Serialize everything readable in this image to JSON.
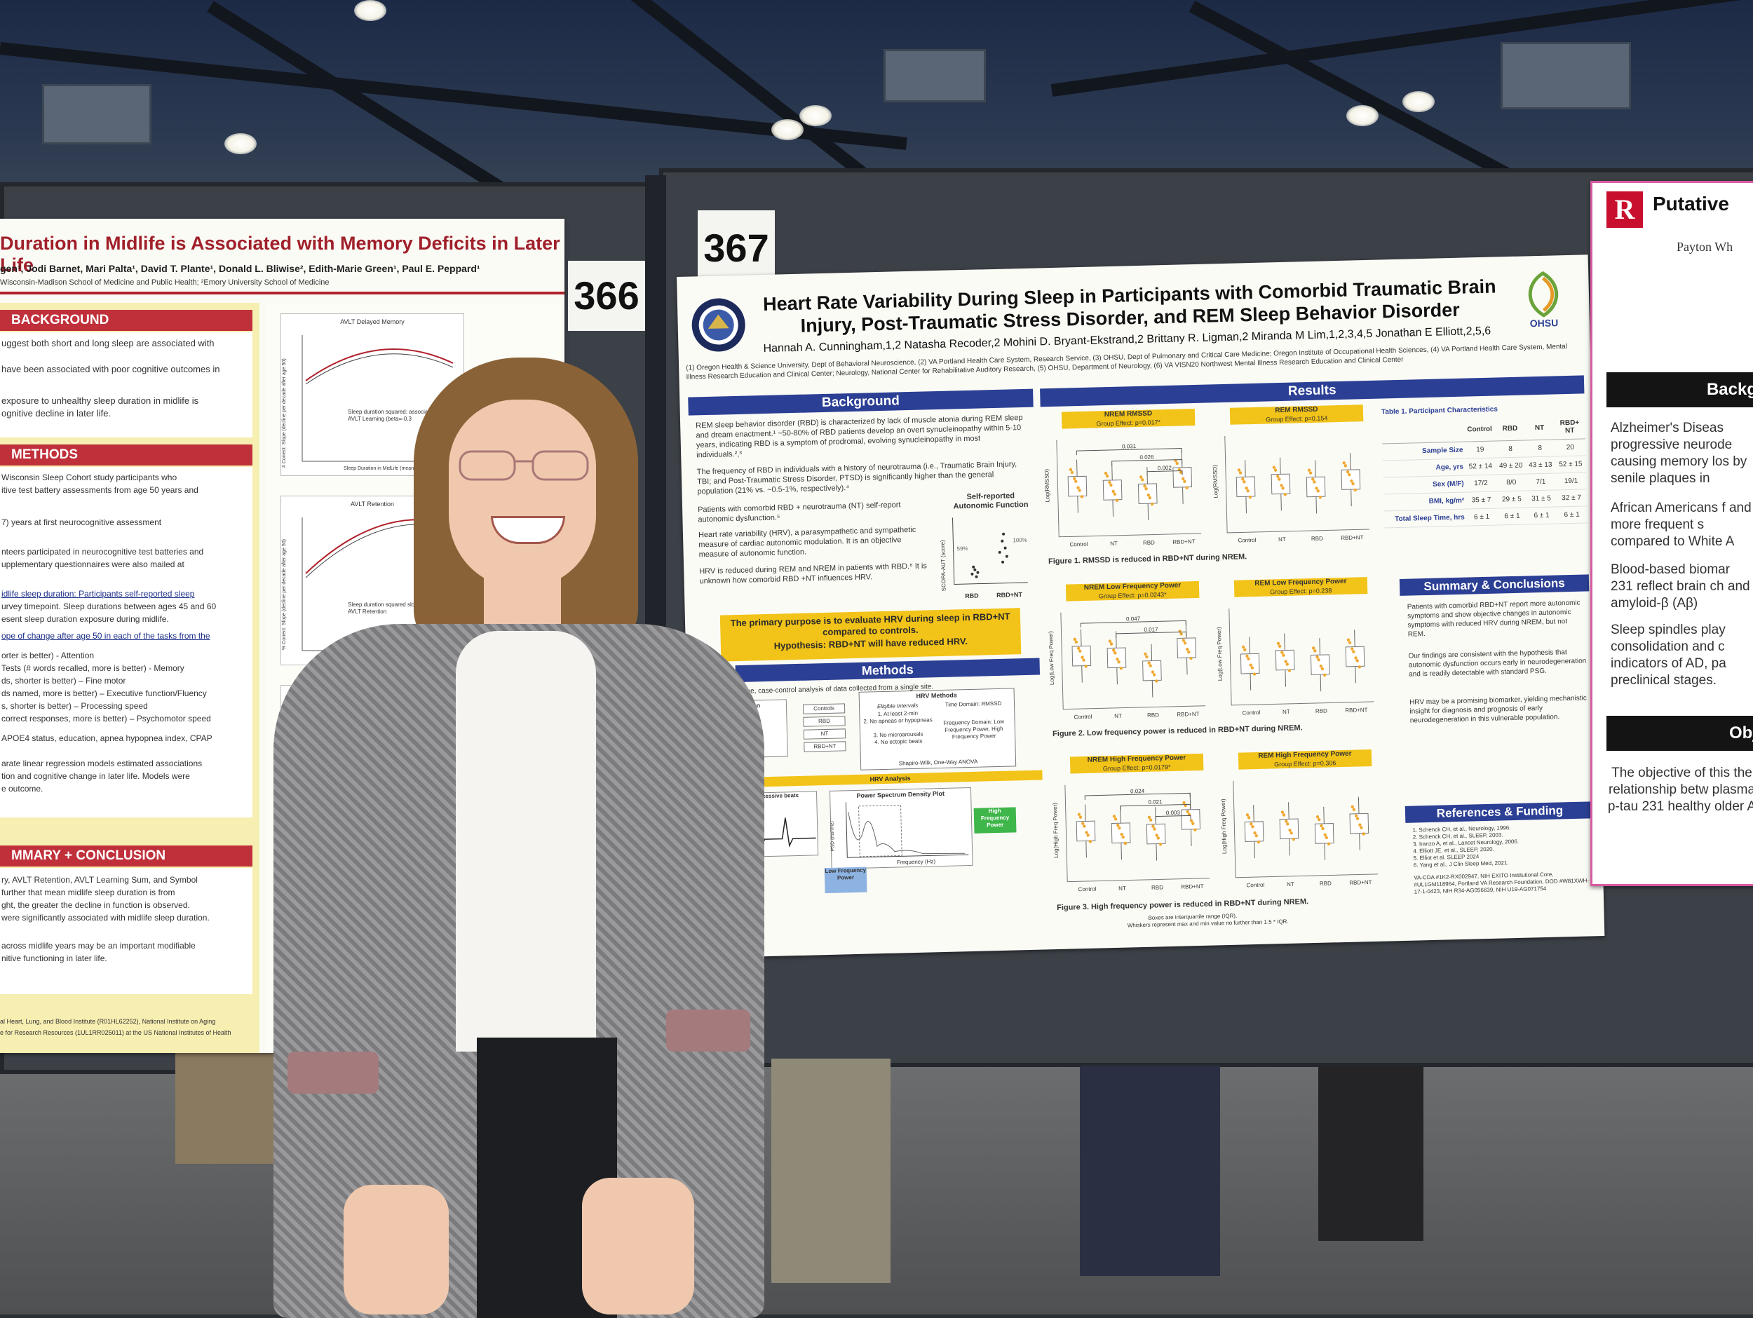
{
  "poster_366": {
    "number": "366",
    "title": "Duration in Midlife is Associated with Memory Deficits in Later Life",
    "authors": "gen¹, Jodi Barnet, Mari Palta¹, David T. Plante¹, Donald L. Bliwise², Edith-Marie Green¹, Paul E. Peppard¹",
    "affiliation": "Wisconsin-Madison School of Medicine and Public Health; ²Emory University School of Medicine",
    "sections": {
      "background": "BACKGROUND",
      "methods": "METHODS",
      "summary": "MMARY + CONCLUSION"
    },
    "background_lines": [
      "uggest both short and long sleep are associated with",
      "have been associated with poor cognitive outcomes in",
      "exposure to unhealthy sleep duration in midlife is",
      "ognitive decline in later life."
    ],
    "methods_lines": [
      "Wisconsin Sleep Cohort study participants who",
      "itive test battery assessments from age 50 years and",
      "7) years at first neurocognitive assessment",
      "nteers participated in neurocognitive test batteries and",
      "upplementary questionnaires were also mailed at",
      "idlife sleep duration: Participants self-reported sleep",
      "urvey timepoint. Sleep durations between ages 45 and 60",
      "esent sleep duration exposure during midlife.",
      "ope of change after age 50 in each of the tasks from the",
      "orter is better) - Attention",
      "Tests (# words recalled, more is better) - Memory",
      "ds, shorter is better) – Fine motor",
      "ds named, more is better) – Executive function/Fluency",
      "s, shorter is better) – Processing speed",
      "correct responses, more is better) – Psychomotor speed",
      "APOE4 status, education, apnea hypopnea index, CPAP",
      "arate linear regression models estimated associations",
      "tion and cognitive change in later life. Models were",
      "e outcome."
    ],
    "summary_lines": [
      "ry, AVLT Retention, AVLT Learning Sum, and Symbol",
      "further that mean midlife sleep duration is from",
      "ght, the greater the decline in function is observed.",
      "were significantly associated with midlife sleep duration.",
      "across midlife years may be an important modifiable",
      "nitive functioning in later life."
    ],
    "funding": "al Heart, Lung, and Blood Institute (R01HL62252), National Institute on Aging",
    "funding2": "e for Research Resources (1UL1RR025011) at the US National Institutes of Health",
    "chart1_title": "AVLT Delayed Memory",
    "chart1_ylabel": "# Correct: Slope (decline per decade after age 50)",
    "chart1_xlabel": "Sleep Duration in MidLife (mean hours)",
    "chart1_note": "Sleep duration squared: associated slope of AVLT Learning (beta=-0.3",
    "chart2_title": "AVLT Retention",
    "chart2_ylabel": "% Correct: Slope (decline per decade after age 50)",
    "chart2_note": "Sleep duration squared slope of AVLT Retention"
  },
  "poster_367": {
    "number": "367",
    "title": "Heart Rate Variability During Sleep in Participants with Comorbid Traumatic Brain Injury, Post-Traumatic Stress Disorder, and REM Sleep Behavior Disorder",
    "authors": "Hannah A. Cunningham,1,2 Natasha Recoder,2 Mohini D. Bryant-Ekstrand,2 Brittany R. Ligman,2 Miranda M Lim,1,2,3,4,5 Jonathan E Elliott,2,5,6",
    "affiliations": "(1) Oregon Health & Science University, Dept of Behavioral Neuroscience, (2) VA Portland Health Care System, Research Service, (3) OHSU, Dept of Pulmonary and Critical Care Medicine; Oregon Institute of Occupational Health Sciences, (4) VA Portland Health Care System, Mental Illness Research Education and Clinical Center; Neurology, National Center for Rehabilitative Auditory Research, (5) OHSU, Department of Neurology, (6) VA VISN20 Northwest Mental Illness Research Education and Clinical Center",
    "ohsu_label": "OHSU",
    "headers": {
      "background": "Background",
      "results": "Results",
      "methods": "Methods",
      "summary": "Summary & Conclusions",
      "references": "References & Funding"
    },
    "background_bullets": [
      "REM sleep behavior disorder (RBD) is characterized by lack of muscle atonia during REM sleep and dream enactment.¹ ~50-80% of RBD patients develop an overt synucleinopathy within 5-10 years, indicating RBD is a symptom of prodromal, evolving synucleinopathy in most individuals.²,³",
      "The frequency of RBD in individuals with a history of neurotrauma (i.e., Traumatic Brain Injury, TBI; and Post-Traumatic Stress Disorder, PTSD) is significantly higher than the general population (21% vs. ~0.5-1%, respectively).⁴",
      "Patients with comorbid RBD + neurotrauma (NT) self-report autonomic dysfunction.⁵",
      "Heart rate variability (HRV), a parasympathetic and sympathetic measure of cardiac autonomic modulation. It is an objective measure of autonomic function.",
      "HRV is reduced during REM and NREM in patients with RBD.⁶ It is unknown how comorbid RBD +NT influences HRV."
    ],
    "self_report_title": "Self-reported Autonomic Function",
    "self_report_ylabel": "SCOPA-AUT (score)",
    "self_report_pct_a": "59%",
    "self_report_pct_b": "100%",
    "self_report_groups": [
      "RBD",
      "RBD+NT"
    ],
    "purpose": "The primary purpose is to evaluate HRV during sleep in RBD+NT compared to controls.",
    "hypothesis": "Hypothesis: RBD+NT will have reduced HRV.",
    "methods_text": "ective, case-control analysis of data collected from a single site.",
    "screen_label": "-Screen",
    "screen_lines": [
      "clude:",
      "agnostic",
      "udies",
      "me <4hrs."
    ],
    "groups": [
      "Controls",
      "RBD",
      "NT",
      "RBD+NT"
    ],
    "hrv_methods_title": "HRV Methods",
    "eligible_title": "Eligible Intervals",
    "eligible_items": [
      "1. At least 2-min",
      "2. No apneas or hypopneas",
      "3. No microarousals",
      "4. No ectopic beats"
    ],
    "time_domain": "Time Domain: RMSSD",
    "freq_domain": "Frequency Domain: Low Frequency Power, High Frequency Power",
    "stats": "Shapiro-Wilk, One-Way ANOVA",
    "hrv_analysis": "HRV Analysis",
    "rmssd_label": "uare successive beats (RMSSD)",
    "psd_title": "Power Spectrum Density Plot",
    "psd_ylabel": "PSD (ms²/Hz)",
    "psd_xlabel": "Frequency (Hz)",
    "low_freq": "Low Frequency Power",
    "high_freq": "High Frequency Power",
    "results_panels": [
      {
        "title": "NREM RMSSD",
        "effect": "Group Effect: p=0.017*",
        "ylabel": "Log(RMSSD)",
        "p": [
          "0.031",
          "0.026",
          "0.002"
        ]
      },
      {
        "title": "REM RMSSD",
        "effect": "Group Effect: p=0.154",
        "ylabel": "Log(RMSSD)",
        "p": []
      },
      {
        "title": "NREM Low Frequency Power",
        "effect": "Group Effect: p=0.0243*",
        "ylabel": "Log(Low Freq Power)",
        "p": [
          "0.047",
          "0.017"
        ]
      },
      {
        "title": "REM Low Frequency Power",
        "effect": "Group Effect: p=0.238",
        "ylabel": "Log(Low Freq Power)",
        "p": []
      },
      {
        "title": "NREM High Frequency Power",
        "effect": "Group Effect: p=0.0179*",
        "ylabel": "Log(High Freq Power)",
        "p": [
          "0.024",
          "0.021",
          "0.003"
        ]
      },
      {
        "title": "REM High Frequency Power",
        "effect": "Group Effect: p=0.306",
        "ylabel": "Log(High Freq Power)",
        "p": []
      }
    ],
    "x_ticks": [
      "Control",
      "NT",
      "RBD",
      "RBD+NT"
    ],
    "fig1_caption": "Figure 1. RMSSD is reduced in RBD+NT during NREM.",
    "fig2_caption": "Figure 2. Low frequency power is reduced in RBD+NT during NREM.",
    "fig3_caption": "Figure 3. High frequency power is reduced in RBD+NT during NREM.",
    "boxes_note": "Boxes are interquartile range (IQR).",
    "whiskers_note": "Whiskers represent max and min value no further than 1.5 * IQR.",
    "table_title": "Table 1. Participant Characteristics",
    "table_headers": [
      "",
      "Control",
      "RBD",
      "NT",
      "RBD+ NT"
    ],
    "table_rows": [
      [
        "Sample Size",
        "19",
        "8",
        "8",
        "20"
      ],
      [
        "Age, yrs",
        "52 ± 14",
        "49 ± 20",
        "43 ± 13",
        "52 ± 15"
      ],
      [
        "Sex (M/F)",
        "17/2",
        "8/0",
        "7/1",
        "19/1"
      ],
      [
        "BMI, kg/m²",
        "35 ± 7",
        "29 ± 5",
        "31 ± 5",
        "32 ± 7"
      ],
      [
        "Total Sleep Time, hrs",
        "6 ± 1",
        "6 ± 1",
        "6 ± 1",
        "6 ± 1"
      ]
    ],
    "summary_bullets": [
      "Patients with comorbid RBD+NT report more autonomic symptoms and show objective changes in autonomic symptoms with reduced HRV during NREM, but not REM.",
      "Our findings are consistent with the hypothesis that autonomic dysfunction occurs early in neurodegeneration and is readily detectable with standard PSG.",
      "HRV may be a promising biomarker, yielding mechanistic insight for diagnosis and prognosis of early neurodegeneration in this vulnerable population."
    ],
    "references": [
      "1. Schenck CH, et al., Neurology, 1996.",
      "2. Schenck CH, et al., SLEEP, 2003.",
      "3. Iranzo A, et al., Lancet Neurology, 2006.",
      "4. Elliott JE, et al., SLEEP, 2020.",
      "5. Elliot et al. SLEEP 2024",
      "6. Yang et al., J Clin Sleep Med, 2021."
    ],
    "funding": "VA-CDA #1K2-RX002947, NIH EXITO Institutional Core, #UL1GM118964, Portland VA Research Foundation, DOD #W81XWH-17-1-0423, NIH R34-AG056639, NIH U19-AG071754"
  },
  "poster_right": {
    "title": "Putative",
    "author": "Payton Wh",
    "logo_letter": "R",
    "section1": "Backg",
    "bullets": [
      "Alzheimer's Diseas progressive neurode causing memory los by senile plaques in",
      "African Americans f and more frequent s compared to White A",
      "Blood-based biomar 231 reflect brain ch and amyloid-β (Aβ)",
      "Sleep spindles play consolidation and c indicators of AD, pa preclinical stages."
    ],
    "section2": "Obj",
    "objective": "The objective of this the relationship betw plasma p-tau 231 healthy older A"
  },
  "colors": {
    "accent_blue": "#2b3f94",
    "accent_gold": "#f2c318",
    "accent_red": "#c0303b",
    "box_orange": "#f0a830"
  }
}
